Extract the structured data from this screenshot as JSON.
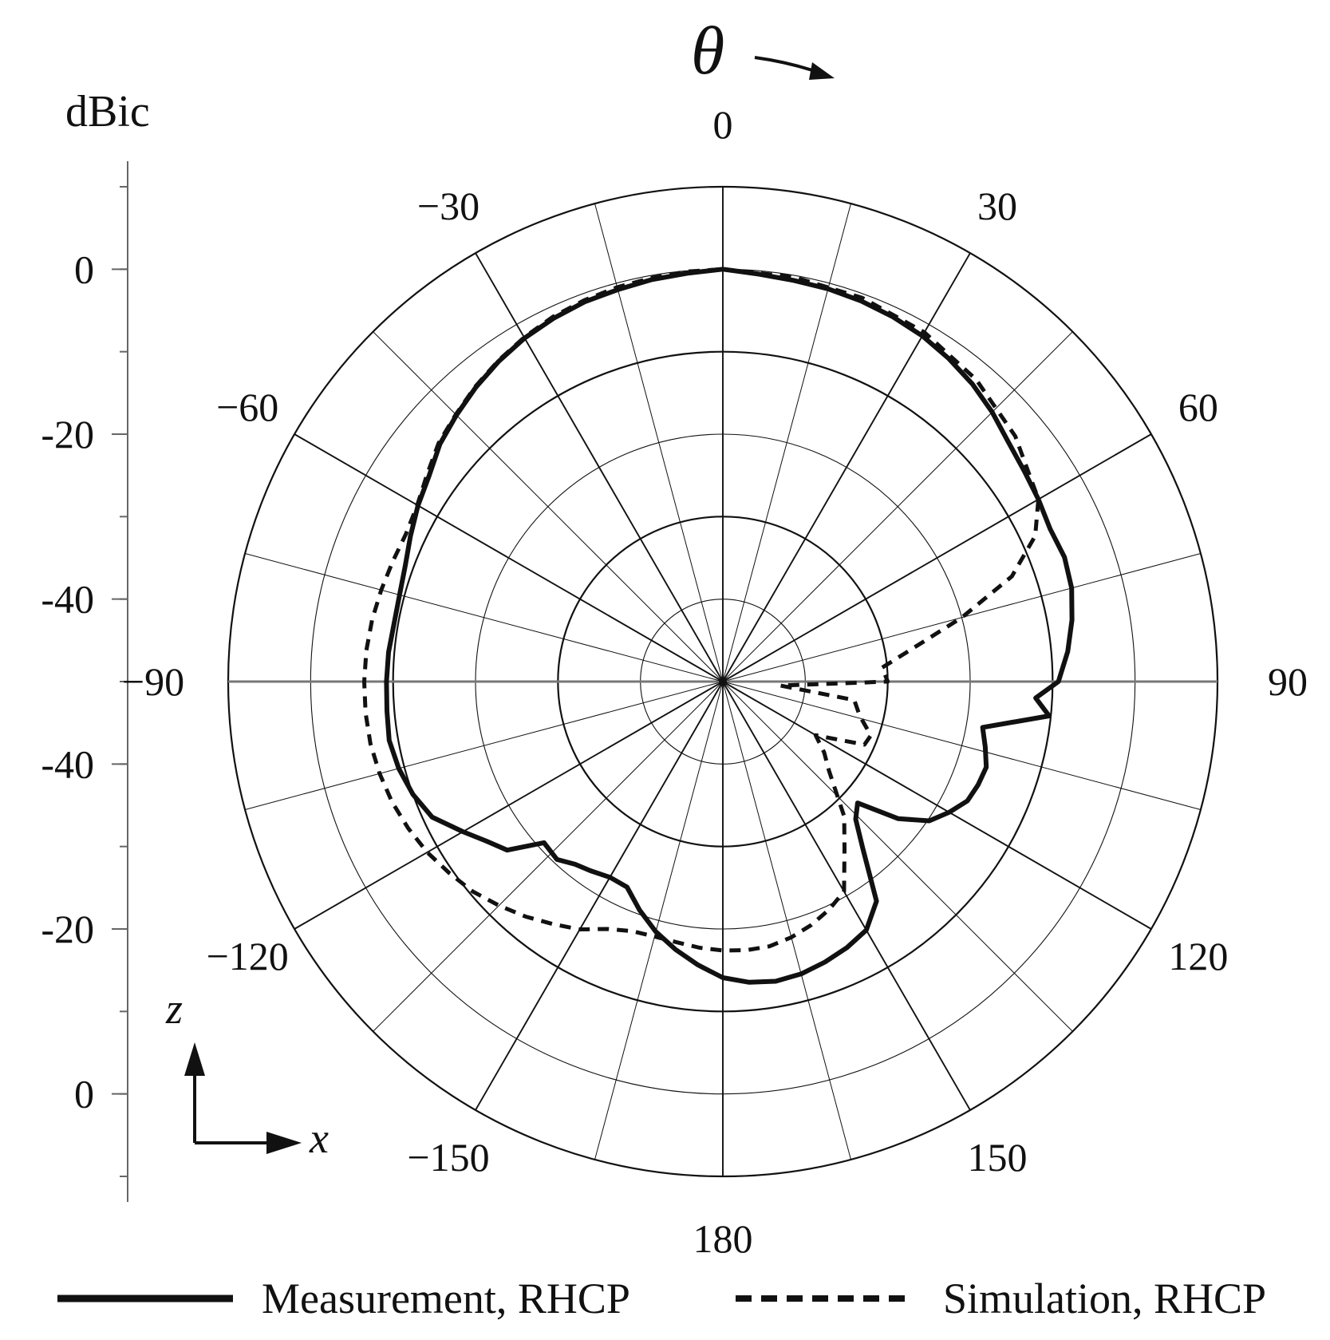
{
  "chart_data": {
    "type": "polar-line",
    "radial_unit_label": "dBic",
    "angle_symbol": "θ",
    "radial_range": [
      -50,
      10
    ],
    "radial_tick_labels": [
      "0",
      "-20",
      "-40",
      "-40",
      "-20",
      "0"
    ],
    "angle_tick_labels": [
      {
        "angle": 0,
        "label": "0"
      },
      {
        "angle": 30,
        "label": "30"
      },
      {
        "angle": 60,
        "label": "60"
      },
      {
        "angle": 90,
        "label": "90"
      },
      {
        "angle": 120,
        "label": "120"
      },
      {
        "angle": 150,
        "label": "150"
      },
      {
        "angle": 180,
        "label": "180"
      },
      {
        "angle": -150,
        "label": "−150"
      },
      {
        "angle": -120,
        "label": "−120"
      },
      {
        "angle": -90,
        "label": "−90"
      },
      {
        "angle": -60,
        "label": "−60"
      },
      {
        "angle": -30,
        "label": "−30"
      }
    ],
    "coord_axes": {
      "vertical": "z",
      "horizontal": "x"
    },
    "legend_position": "bottom",
    "series": [
      {
        "name": "Measurement, RHCP",
        "style": "solid",
        "color": "#111111",
        "points": [
          [
            0,
            0
          ],
          [
            5,
            -0.4
          ],
          [
            10,
            -0.6
          ],
          [
            15,
            -0.7
          ],
          [
            20,
            -0.9
          ],
          [
            25,
            -1.2
          ],
          [
            30,
            -1.6
          ],
          [
            35,
            -2.2
          ],
          [
            40,
            -2.9
          ],
          [
            45,
            -3.8
          ],
          [
            50,
            -4.8
          ],
          [
            55,
            -5.4
          ],
          [
            60,
            -5.8
          ],
          [
            65,
            -6.2
          ],
          [
            70,
            -5.9
          ],
          [
            75,
            -6.2
          ],
          [
            80,
            -7.0
          ],
          [
            85,
            -8.0
          ],
          [
            90,
            -9.3
          ],
          [
            93,
            -12.0
          ],
          [
            96,
            -10.2
          ],
          [
            100,
            -18.0
          ],
          [
            104,
            -17.2
          ],
          [
            108,
            -16.4
          ],
          [
            112,
            -16.6
          ],
          [
            116,
            -17.0
          ],
          [
            120,
            -18.3
          ],
          [
            124,
            -19.8
          ],
          [
            128,
            -23.0
          ],
          [
            132,
            -28.0
          ],
          [
            136,
            -26.8
          ],
          [
            140,
            -23.6
          ],
          [
            145,
            -17.5
          ],
          [
            150,
            -15.2
          ],
          [
            155,
            -14.4
          ],
          [
            160,
            -13.8
          ],
          [
            165,
            -13.3
          ],
          [
            170,
            -13.1
          ],
          [
            175,
            -13.4
          ],
          [
            180,
            -14.1
          ],
          [
            -175,
            -15.5
          ],
          [
            -170,
            -17.0
          ],
          [
            -165,
            -18.6
          ],
          [
            -160,
            -20.5
          ],
          [
            -155,
            -22.5
          ],
          [
            -150,
            -22.6
          ],
          [
            -145,
            -22.0
          ],
          [
            -141,
            -21.5
          ],
          [
            -137,
            -20.5
          ],
          [
            -132,
            -20.8
          ],
          [
            -128,
            -16.8
          ],
          [
            -124,
            -15.4
          ],
          [
            -120,
            -13.6
          ],
          [
            -115,
            -11.1
          ],
          [
            -110,
            -10.0
          ],
          [
            -105,
            -9.3
          ],
          [
            -100,
            -8.9
          ],
          [
            -95,
            -9.1
          ],
          [
            -90,
            -9.2
          ],
          [
            -85,
            -9.3
          ],
          [
            -80,
            -9.5
          ],
          [
            -75,
            -9.4
          ],
          [
            -70,
            -9.0
          ],
          [
            -65,
            -8.2
          ],
          [
            -60,
            -7.3
          ],
          [
            -55,
            -6.5
          ],
          [
            -50,
            -5.2
          ],
          [
            -45,
            -4.3
          ],
          [
            -40,
            -3.4
          ],
          [
            -35,
            -2.6
          ],
          [
            -30,
            -1.9
          ],
          [
            -25,
            -1.4
          ],
          [
            -20,
            -1.0
          ],
          [
            -15,
            -0.8
          ],
          [
            -10,
            -0.5
          ],
          [
            -5,
            -0.3
          ],
          [
            0,
            0
          ]
        ]
      },
      {
        "name": "Simulation, RHCP",
        "style": "dashed",
        "color": "#111111",
        "points": [
          [
            0,
            0
          ],
          [
            10,
            -0.2
          ],
          [
            20,
            -0.5
          ],
          [
            30,
            -1.1
          ],
          [
            40,
            -2.2
          ],
          [
            50,
            -3.7
          ],
          [
            60,
            -5.8
          ],
          [
            65,
            -8.2
          ],
          [
            70,
            -12.7
          ],
          [
            75,
            -20.0
          ],
          [
            80,
            -26.5
          ],
          [
            85,
            -30.6
          ],
          [
            90,
            -30.0
          ],
          [
            94,
            -43.0
          ],
          [
            98,
            -33.9
          ],
          [
            104,
            -32.9
          ],
          [
            110,
            -30.9
          ],
          [
            114,
            -31.2
          ],
          [
            117,
            -34.6
          ],
          [
            120,
            -37.0
          ],
          [
            125,
            -35.0
          ],
          [
            130,
            -33.2
          ],
          [
            138,
            -28.0
          ],
          [
            144,
            -24.9
          ],
          [
            150,
            -20.6
          ],
          [
            155,
            -19.5
          ],
          [
            160,
            -18.6
          ],
          [
            165,
            -17.9
          ],
          [
            170,
            -17.4
          ],
          [
            175,
            -17.3
          ],
          [
            180,
            -17.4
          ],
          [
            -175,
            -17.6
          ],
          [
            -170,
            -17.9
          ],
          [
            -165,
            -18.0
          ],
          [
            -160,
            -17.8
          ],
          [
            -155,
            -16.9
          ],
          [
            -150,
            -15.3
          ],
          [
            -145,
            -14.1
          ],
          [
            -140,
            -12.8
          ],
          [
            -135,
            -11.6
          ],
          [
            -130,
            -10.4
          ],
          [
            -125,
            -9.5
          ],
          [
            -120,
            -8.6
          ],
          [
            -115,
            -7.9
          ],
          [
            -110,
            -7.3
          ],
          [
            -105,
            -6.9
          ],
          [
            -100,
            -6.6
          ],
          [
            -95,
            -6.5
          ],
          [
            -90,
            -6.5
          ],
          [
            -85,
            -6.6
          ],
          [
            -80,
            -6.8
          ],
          [
            -75,
            -7.1
          ],
          [
            -70,
            -7.4
          ],
          [
            -65,
            -7.6
          ],
          [
            -60,
            -7.2
          ],
          [
            -55,
            -6.2
          ],
          [
            -50,
            -5.0
          ],
          [
            -45,
            -4.2
          ],
          [
            -40,
            -3.3
          ],
          [
            -35,
            -2.5
          ],
          [
            -30,
            -1.8
          ],
          [
            -25,
            -1.2
          ],
          [
            -20,
            -0.8
          ],
          [
            -15,
            -0.5
          ],
          [
            -10,
            -0.3
          ],
          [
            -5,
            -0.1
          ],
          [
            0,
            0
          ]
        ]
      }
    ]
  }
}
